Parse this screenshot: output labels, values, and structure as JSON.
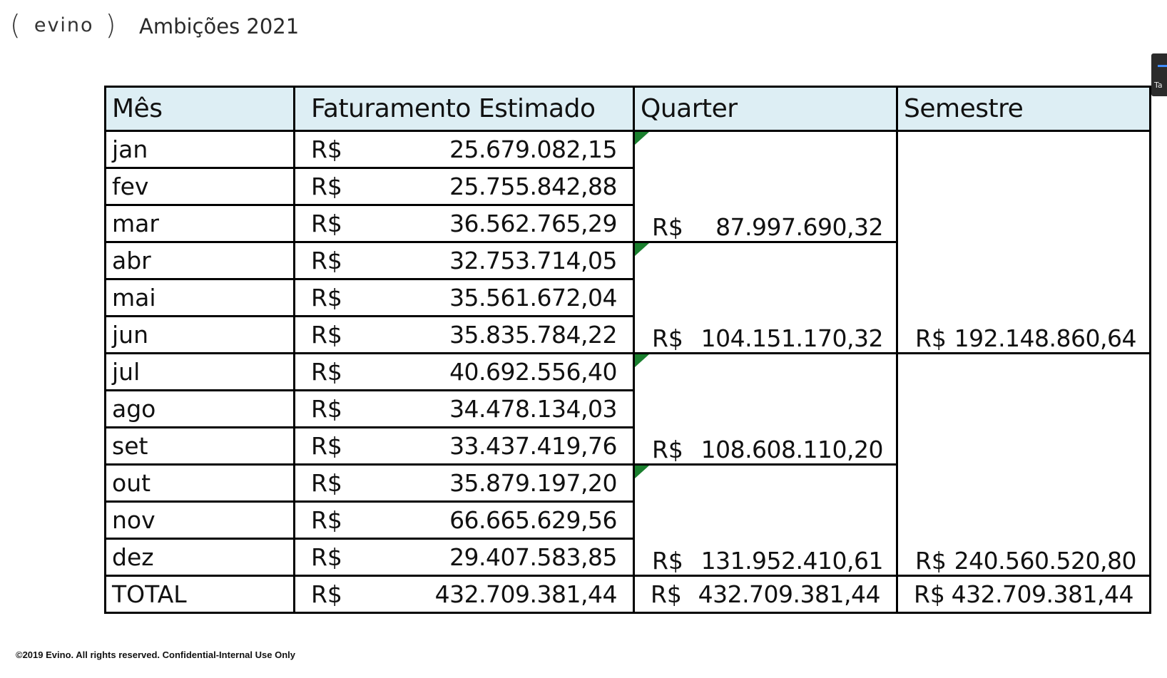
{
  "header": {
    "logo_text": "evino",
    "title": "Ambições 2021"
  },
  "side_widget": {
    "label": "Ta",
    "accent": "#3f8cff"
  },
  "table": {
    "columns": [
      "Mês",
      "Faturamento Estimado",
      "Quarter",
      "Semestre"
    ],
    "currency": "R$",
    "header_bg": "#ddeef4",
    "flag_color": "#1a7f2e",
    "months": [
      {
        "month": "jan",
        "value": "25.679.082,15"
      },
      {
        "month": "fev",
        "value": "25.755.842,88"
      },
      {
        "month": "mar",
        "value": "36.562.765,29"
      },
      {
        "month": "abr",
        "value": "32.753.714,05"
      },
      {
        "month": "mai",
        "value": "35.561.672,04"
      },
      {
        "month": "jun",
        "value": "35.835.784,22"
      },
      {
        "month": "jul",
        "value": "40.692.556,40"
      },
      {
        "month": "ago",
        "value": "34.478.134,03"
      },
      {
        "month": "set",
        "value": "33.437.419,76"
      },
      {
        "month": "out",
        "value": "35.879.197,20"
      },
      {
        "month": "nov",
        "value": "66.665.629,56"
      },
      {
        "month": "dez",
        "value": "29.407.583,85"
      }
    ],
    "quarters": [
      "87.997.690,32",
      "104.151.170,32",
      "108.608.110,20",
      "131.952.410,61"
    ],
    "semesters": [
      "192.148.860,64",
      "240.560.520,80"
    ],
    "total": {
      "label": "TOTAL",
      "faturamento": "432.709.381,44",
      "quarter": "432.709.381,44",
      "semestre": "432.709.381,44"
    }
  },
  "footer": {
    "text": "©2019 Evino. All rights reserved. Confidential-Internal Use Only"
  }
}
